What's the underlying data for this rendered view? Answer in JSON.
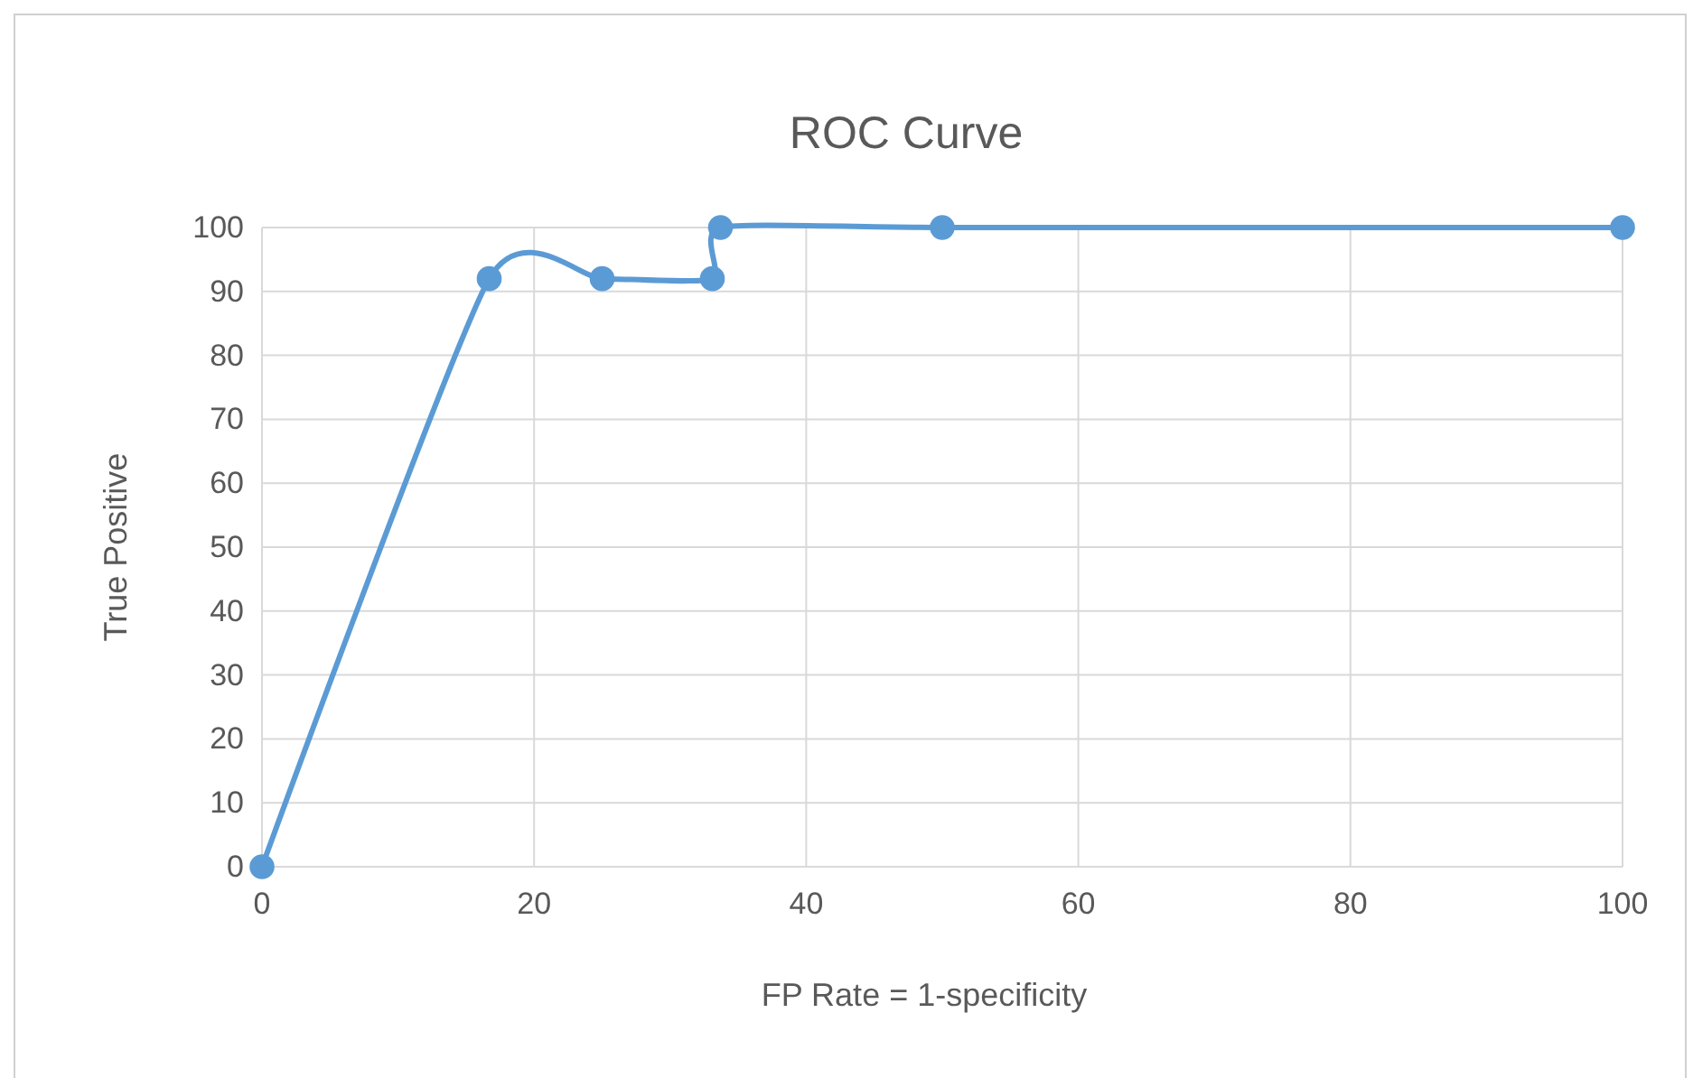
{
  "chart_data": {
    "type": "line",
    "title": "ROC Curve",
    "xlabel": "FP Rate = 1-specificity",
    "ylabel": "True Positive",
    "x": [
      0,
      16.7,
      25,
      33.1,
      33.7,
      50,
      100
    ],
    "series": [
      {
        "color": "#5b9bd5",
        "values": [
          0,
          92,
          92,
          92,
          100,
          100,
          100
        ]
      }
    ],
    "xlim": [
      0,
      100
    ],
    "xticks": [
      0,
      20,
      40,
      60,
      80,
      100
    ],
    "ylim": [
      0,
      100
    ],
    "yticks": [
      0,
      10,
      20,
      30,
      40,
      50,
      60,
      70,
      80,
      90,
      100
    ],
    "grid": true,
    "marker": "circle",
    "line_style": "solid"
  }
}
